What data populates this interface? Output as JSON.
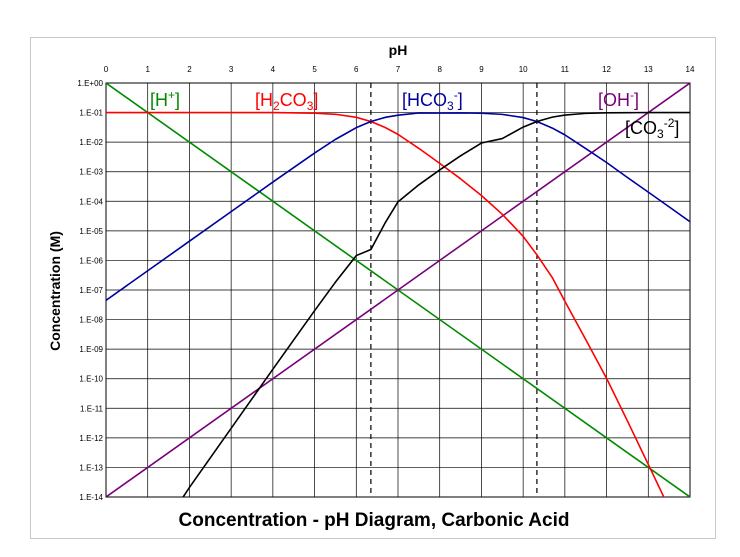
{
  "chart_data": {
    "type": "line",
    "title": "Concentration - pH Diagram, Carbonic Acid",
    "xlabel": "pH",
    "ylabel": "Concentration (M)",
    "x_axis_position": "top",
    "xlim": [
      0,
      14
    ],
    "ylim_log10": [
      -14,
      0
    ],
    "y_scale": "log",
    "grid": true,
    "x_ticks": [
      0,
      1,
      2,
      3,
      4,
      5,
      6,
      7,
      8,
      9,
      10,
      11,
      12,
      13,
      14
    ],
    "y_tick_labels": [
      "1.E+00",
      "1.E-01",
      "1.E-02",
      "1.E-03",
      "1.E-04",
      "1.E-05",
      "1.E-06",
      "1.E-07",
      "1.E-08",
      "1.E-09",
      "1.E-10",
      "1.E-11",
      "1.E-12",
      "1.E-13",
      "1.E-14"
    ],
    "dashed_vlines": [
      6.35,
      10.33
    ],
    "series": [
      {
        "name": "[H+]",
        "label_base": "[H",
        "label_sup": "+",
        "label_end": "]",
        "color": "#008a00",
        "x": [
          0,
          14
        ],
        "y": [
          1,
          1e-14
        ]
      },
      {
        "name": "[OH-]",
        "label_base": "[OH",
        "label_sup": "-",
        "label_end": "]",
        "color": "#7a007a",
        "x": [
          0,
          14
        ],
        "y": [
          1e-14,
          1
        ]
      },
      {
        "name": "[H2CO3]",
        "label_base": "[H",
        "label_sub": "2",
        "label_mid": "CO",
        "label_sub2": "3",
        "label_end": "]",
        "color": "#ff0000",
        "x": [
          0,
          1,
          2,
          3,
          4,
          5,
          5.5,
          6,
          6.35,
          6.7,
          7,
          7.5,
          8,
          8.5,
          9,
          9.5,
          10,
          10.33,
          10.7,
          11,
          11.5,
          12,
          12.5,
          13,
          13.5,
          14
        ],
        "y": [
          0.1,
          0.1,
          0.1,
          0.1,
          0.1,
          0.0957,
          0.0876,
          0.0691,
          0.05,
          0.0309,
          0.0183,
          0.00614,
          0.00192,
          0.000575,
          0.000157,
          3.63e-05,
          6.52e-06,
          1.55e-06,
          2.61e-07,
          4.16e-08,
          2.11e-09,
          1.03e-10,
          3.73e-12,
          1.26e-13,
          4.2e-15,
          1.35e-16
        ]
      },
      {
        "name": "[HCO3-]",
        "label_base": "[HCO",
        "label_sub": "3",
        "label_sup": "-",
        "label_end": "]",
        "color": "#0000a0",
        "x": [
          0,
          1,
          2,
          3,
          4,
          5,
          5.5,
          6,
          6.35,
          6.7,
          7,
          7.5,
          8,
          8.5,
          9,
          9.5,
          10,
          10.33,
          10.7,
          11,
          11.5,
          12,
          12.5,
          13,
          13.5,
          14
        ],
        "y": [
          4.47e-08,
          4.47e-07,
          4.47e-06,
          4.47e-05,
          0.000446,
          0.00427,
          0.0124,
          0.0309,
          0.05,
          0.0691,
          0.0817,
          0.0974,
          0.0959,
          0.0974,
          0.0954,
          0.0869,
          0.0677,
          0.05,
          0.0299,
          0.0176,
          0.00607,
          0.00205,
          0.000638,
          0.000204,
          6.46e-05,
          2.04e-05
        ]
      },
      {
        "name": "[CO3-2]",
        "label_base": "[CO",
        "label_sub": "3",
        "label_sup": "-2",
        "label_end": "]",
        "color": "#000000",
        "x": [
          1.85,
          2,
          3,
          4,
          5,
          5.5,
          6,
          6.35,
          6.7,
          7,
          7.5,
          8,
          8.5,
          9,
          9.5,
          10,
          10.33,
          10.7,
          11,
          11.5,
          12,
          12.5,
          13,
          13.5,
          14
        ],
        "y": [
          1e-14,
          2.1e-14,
          2.1e-12,
          2.1e-10,
          2e-08,
          1.84e-07,
          1.46e-06,
          2.35e-06,
          1.95e-05,
          9.57e-05,
          0.000361,
          0.00115,
          0.00344,
          0.00935,
          0.0132,
          0.0323,
          0.05,
          0.0701,
          0.0824,
          0.0939,
          0.098,
          0.0994,
          0.0998,
          0.0999,
          0.1
        ]
      }
    ]
  }
}
